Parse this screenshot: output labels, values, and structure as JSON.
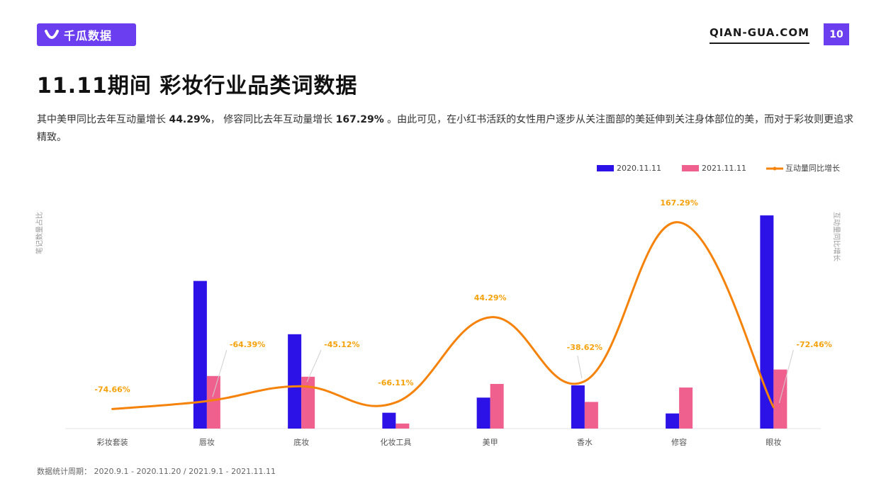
{
  "header": {
    "brand_name": "千瓜数据",
    "site_url": "QIAN-GUA.COM",
    "page_number": "10",
    "accent_color": "#6b3ff0"
  },
  "title": "11.11期间 彩妆行业品类词数据",
  "description": {
    "part1": "其中美甲同比去年互动量增长 ",
    "value1": "44.29%",
    "part2": "， 修容同比去年互动量增长 ",
    "value2": "167.29%",
    "part3": " 。由此可见，在小红书活跃的女性用户逐步从关注面部的美延伸到关注身体部位的美，而对于彩妆则更追求精致。"
  },
  "footnote": "数据统计周期： 2020.9.1 - 2020.11.20 / 2021.9.1 - 2021.11.11",
  "chart_data": {
    "type": "bar",
    "categories": [
      "彩妆套装",
      "唇妆",
      "底妆",
      "化妆工具",
      "美甲",
      "香水",
      "修容",
      "眼妆"
    ],
    "ylabel": "笔记数量占比",
    "y2label": "互动量同比增长",
    "legend_position": "top-right",
    "grid": false,
    "ylim": [
      0,
      30
    ],
    "series": [
      {
        "name": "2020.11.11",
        "kind": "bar",
        "color": "#2d12e8",
        "values": [
          0,
          20.5,
          13.1,
          2.2,
          4.3,
          6.0,
          2.1,
          29.6
        ]
      },
      {
        "name": "2021.11.11",
        "kind": "bar",
        "color": "#f0608f",
        "values": [
          0,
          7.3,
          7.2,
          0.7,
          6.2,
          3.7,
          5.7,
          8.2
        ]
      },
      {
        "name": "互动量同比增长",
        "kind": "line",
        "color": "#f5820a",
        "values": [
          -74.66,
          -64.39,
          -45.12,
          -66.11,
          44.29,
          -38.62,
          167.29,
          -72.46
        ],
        "labels": [
          "-74.66%",
          "-64.39%",
          "-45.12%",
          "-66.11%",
          "44.29%",
          "-38.62%",
          "167.29%",
          "-72.46%"
        ]
      }
    ],
    "y2lim": [
      -100,
      180
    ]
  }
}
